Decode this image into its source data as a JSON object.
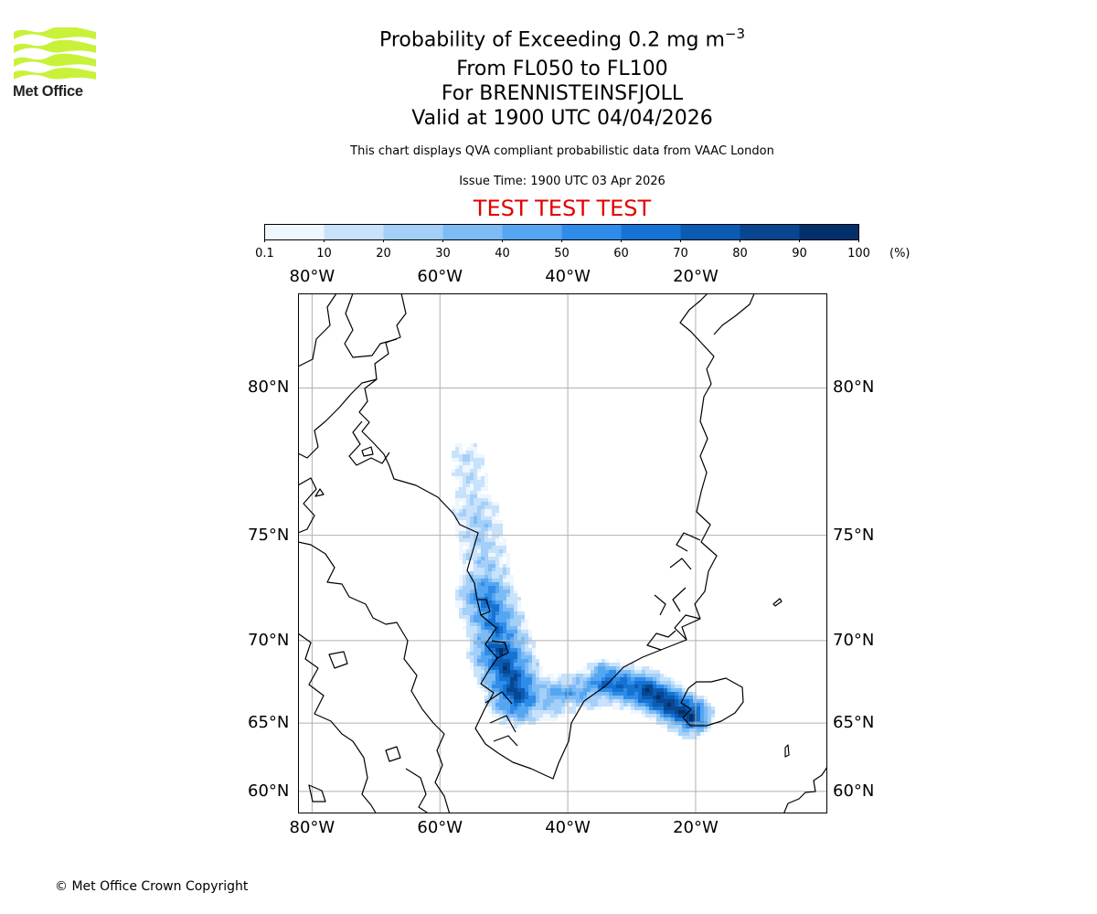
{
  "logo": {
    "text": "Met Office",
    "color": "#c8f23a"
  },
  "header": {
    "title_prefix": "Probability of Exceeding 0.2 mg m",
    "title_exponent": "−3",
    "flight_levels": "From FL050 to FL100",
    "volcano": "For BRENNISTEINSFJOLL",
    "valid_time": "Valid at 1900 UTC 04/04/2026",
    "description": "This chart displays QVA compliant probabilistic data from VAAC London",
    "issue_time": "Issue Time: 1900 UTC 03 Apr 2026",
    "test_banner": "TEST TEST TEST"
  },
  "colorbar": {
    "ticks": [
      "0.1",
      "10",
      "20",
      "30",
      "40",
      "50",
      "60",
      "70",
      "80",
      "90",
      "100"
    ],
    "colors": [
      "#eef6fe",
      "#c8e2fb",
      "#a3cff8",
      "#7dbbf5",
      "#55a6f1",
      "#2f8ce8",
      "#1673d3",
      "#0c5bb2",
      "#08468f",
      "#03306b"
    ],
    "unit": "(%)"
  },
  "map": {
    "lon_labels": [
      "80°W",
      "60°W",
      "40°W",
      "20°W"
    ],
    "lat_labels": [
      "80°N",
      "75°N",
      "70°N",
      "65°N",
      "60°N"
    ],
    "lon_values": [
      -80,
      -60,
      -40,
      -20
    ],
    "lat_values": [
      80,
      75,
      70,
      65,
      60
    ],
    "lon_range": [
      -82.2,
      0.6
    ],
    "lat_range": [
      58.2,
      82.3
    ]
  },
  "footer": {
    "copyright": "© Met Office Crown Copyright"
  }
}
